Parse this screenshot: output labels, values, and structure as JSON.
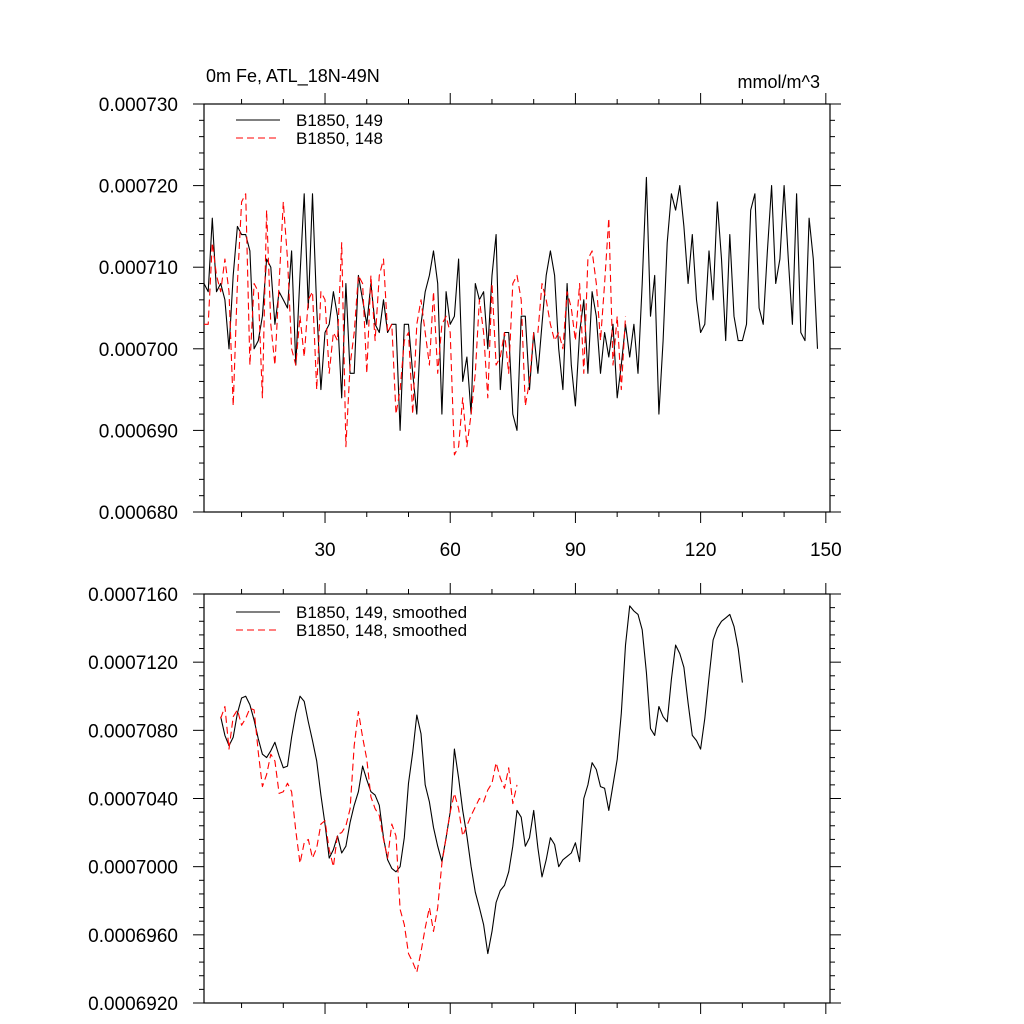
{
  "chart_data": [
    {
      "type": "line",
      "title_left": "0m Fe, ATL_18N-49N",
      "title_right": "mmol/m^3",
      "xlim": [
        1,
        151
      ],
      "ylim": [
        0.00068,
        0.00073
      ],
      "x_ticks": [
        30,
        60,
        90,
        120,
        150
      ],
      "x_tick_labels": [
        "30",
        "60",
        "90",
        "120",
        "150"
      ],
      "y_ticks": [
        0.00068,
        0.00069,
        0.0007,
        0.00071,
        0.00072,
        0.00073
      ],
      "y_tick_labels": [
        "0.000680",
        "0.000690",
        "0.000700",
        "0.000710",
        "0.000720",
        "0.000730"
      ],
      "legend_position": "top-left",
      "series": [
        {
          "name": "B1850, 149",
          "color": "#000000",
          "dash": "solid",
          "x_start": 1,
          "values": [
            0.000708,
            0.000707,
            0.000716,
            0.000707,
            0.000708,
            0.000706,
            0.0007,
            0.000709,
            0.000715,
            0.000714,
            0.000714,
            0.000712,
            0.0007,
            0.000701,
            0.000704,
            0.000711,
            0.00071,
            0.000703,
            0.000707,
            0.000706,
            0.000705,
            0.000712,
            0.000698,
            0.000709,
            0.000719,
            0.000705,
            0.000719,
            0.000705,
            0.000695,
            0.000702,
            0.000703,
            0.000707,
            0.000704,
            0.000694,
            0.000708,
            0.000697,
            0.000697,
            0.000709,
            0.000706,
            0.000703,
            0.000708,
            0.000703,
            0.000702,
            0.000706,
            0.000702,
            0.000703,
            0.000703,
            0.00069,
            0.000703,
            0.000703,
            0.000697,
            0.000692,
            0.000703,
            0.000707,
            0.000709,
            0.000712,
            0.000708,
            0.000692,
            0.000707,
            0.000703,
            0.000704,
            0.000711,
            0.000696,
            0.000699,
            0.000692,
            0.000708,
            0.000706,
            0.000707,
            0.0007,
            0.000709,
            0.000714,
            0.000695,
            0.000702,
            0.000702,
            0.000692,
            0.00069,
            0.000704,
            0.000704,
            0.000695,
            0.000702,
            0.000697,
            0.000703,
            0.000709,
            0.000712,
            0.000709,
            0.0007,
            0.000695,
            0.000708,
            0.000698,
            0.000693,
            0.000702,
            0.000706,
            0.000697,
            0.000707,
            0.000704,
            0.000697,
            0.000702,
            0.000699,
            0.000703,
            0.000694,
            0.000698,
            0.000703,
            0.000699,
            0.000703,
            0.000697,
            0.000708,
            0.000721,
            0.000704,
            0.000709,
            0.000692,
            0.000701,
            0.000713,
            0.000719,
            0.000717,
            0.00072,
            0.000715,
            0.000708,
            0.000714,
            0.000706,
            0.000702,
            0.000703,
            0.000712,
            0.000706,
            0.000718,
            0.000711,
            0.000701,
            0.000714,
            0.000704,
            0.000701,
            0.000701,
            0.000703,
            0.000717,
            0.000719,
            0.000705,
            0.000703,
            0.000712,
            0.00072,
            0.000708,
            0.000711,
            0.00072,
            0.000711,
            0.000703,
            0.000719,
            0.000702,
            0.000701,
            0.000716,
            0.000711,
            0.0007
          ]
        },
        {
          "name": "B1850, 148",
          "color": "#ff0000",
          "dash": "dashed",
          "x_start": 1,
          "values": [
            0.000703,
            0.000703,
            0.000713,
            0.000709,
            0.000707,
            0.000711,
            0.000707,
            0.000693,
            0.000708,
            0.000718,
            0.000719,
            0.000698,
            0.000708,
            0.000707,
            0.000694,
            0.000717,
            0.000703,
            0.000698,
            0.000708,
            0.000718,
            0.000711,
            0.0007,
            0.000698,
            0.000704,
            0.000699,
            0.000706,
            0.000707,
            0.000695,
            0.000707,
            0.000706,
            0.000697,
            0.000702,
            0.000701,
            0.000713,
            0.000688,
            0.000698,
            0.000702,
            0.000709,
            0.000708,
            0.000697,
            0.000709,
            0.000701,
            0.000709,
            0.000711,
            0.000702,
            0.000703,
            0.000692,
            0.000695,
            0.000701,
            0.000702,
            0.000692,
            0.000703,
            0.000706,
            0.000702,
            0.000698,
            0.000707,
            0.000697,
            0.000703,
            0.000704,
            0.000702,
            0.000687,
            0.000688,
            0.000694,
            0.000688,
            0.000692,
            0.000697,
            0.000706,
            0.000702,
            0.000694,
            0.000708,
            0.000698,
            0.000699,
            0.000702,
            0.000697,
            0.000708,
            0.000709,
            0.000706,
            0.000693,
            0.000696,
            0.000702,
            0.000702,
            0.000708,
            0.000706,
            0.000703,
            0.000701,
            0.000702,
            0.0007,
            0.000707,
            0.000705,
            0.000701,
            0.000708,
            0.000697,
            0.000711,
            0.000712,
            0.000708,
            0.000701,
            0.000708,
            0.000716,
            0.000698,
            0.000704,
            0.000695,
            0.000704
          ]
        }
      ]
    },
    {
      "type": "line",
      "xlim": [
        1,
        151
      ],
      "ylim": [
        0.000692,
        0.000716
      ],
      "x_ticks": [
        30,
        60,
        90,
        120,
        150
      ],
      "y_ticks": [
        0.000692,
        0.000696,
        0.0007,
        0.000704,
        0.000708,
        0.000712,
        0.000716
      ],
      "y_tick_labels": [
        "0.0006920",
        "0.0006960",
        "0.0007000",
        "0.0007040",
        "0.0007080",
        "0.0007120",
        "0.0007160"
      ],
      "legend_position": "top-left",
      "series": [
        {
          "name": "B1850, 149, smoothed",
          "color": "#000000",
          "dash": "solid",
          "x_start": 5,
          "values": [
            0.0007088,
            0.0007077,
            0.0007071,
            0.0007076,
            0.000709,
            0.0007099,
            0.00071,
            0.0007095,
            0.0007086,
            0.0007075,
            0.0007066,
            0.0007064,
            0.0007068,
            0.0007073,
            0.0007065,
            0.0007058,
            0.0007059,
            0.0007076,
            0.000709,
            0.00071,
            0.0007097,
            0.0007085,
            0.0007074,
            0.0007062,
            0.0007042,
            0.0007025,
            0.0007005,
            0.000701,
            0.0007018,
            0.0007008,
            0.0007012,
            0.0007026,
            0.0007036,
            0.0007044,
            0.0007059,
            0.0007051,
            0.0007044,
            0.0007042,
            0.0007036,
            0.0007017,
            0.0007004,
            0.0006999,
            0.0006997,
            0.0007,
            0.0007017,
            0.0007049,
            0.0007067,
            0.0007089,
            0.0007078,
            0.0007048,
            0.0007038,
            0.0007023,
            0.0007012,
            0.0007003,
            0.0007017,
            0.0007032,
            0.0007069,
            0.0007052,
            0.0007033,
            0.0007018,
            0.0007,
            0.0006985,
            0.0006976,
            0.0006966,
            0.0006949,
            0.0006962,
            0.0006979,
            0.0006986,
            0.0006989,
            0.0006997,
            0.0007012,
            0.0007033,
            0.0007029,
            0.0007012,
            0.0007017,
            0.0007033,
            0.0007011,
            0.0006994,
            0.0007004,
            0.0007017,
            0.0007013,
            0.0007,
            0.0007004,
            0.0007006,
            0.0007008,
            0.0007014,
            0.0007003,
            0.000704,
            0.0007048,
            0.0007061,
            0.0007057,
            0.0007047,
            0.0007046,
            0.0007033,
            0.0007048,
            0.0007063,
            0.000709,
            0.000713,
            0.0007153,
            0.000715,
            0.0007148,
            0.0007139,
            0.0007114,
            0.0007081,
            0.0007077,
            0.0007094,
            0.0007088,
            0.0007085,
            0.000711,
            0.000713,
            0.0007125,
            0.0007117,
            0.0007096,
            0.0007077,
            0.0007074,
            0.0007069,
            0.0007087,
            0.0007111,
            0.0007133,
            0.000714,
            0.0007144,
            0.0007146,
            0.0007148,
            0.0007141,
            0.0007128,
            0.0007108
          ]
        },
        {
          "name": "B1850, 148, smoothed",
          "color": "#ff0000",
          "dash": "dashed",
          "x_start": 5,
          "values": [
            0.0007087,
            0.0007094,
            0.0007069,
            0.0007088,
            0.0007092,
            0.0007083,
            0.0007087,
            0.0007093,
            0.0007092,
            0.0007067,
            0.0007047,
            0.0007054,
            0.0007066,
            0.0007062,
            0.0007043,
            0.0007044,
            0.0007049,
            0.0007044,
            0.0007021,
            0.0007002,
            0.0007014,
            0.0007016,
            0.0007005,
            0.0007011,
            0.0007025,
            0.0007027,
            0.000701,
            0.0007,
            0.0007019,
            0.000702,
            0.0007024,
            0.0007034,
            0.0007071,
            0.0007091,
            0.0007076,
            0.0007063,
            0.0007041,
            0.0007034,
            0.000703,
            0.0007016,
            0.0007005,
            0.0007025,
            0.0007018,
            0.0006975,
            0.0006966,
            0.0006949,
            0.0006944,
            0.0006938,
            0.000695,
            0.0006964,
            0.0006976,
            0.0006962,
            0.0006976,
            0.0007002,
            0.0007017,
            0.0007032,
            0.0007043,
            0.0007034,
            0.0007018,
            0.0007024,
            0.000703,
            0.0007035,
            0.000704,
            0.0007038,
            0.0007045,
            0.0007049,
            0.0007061,
            0.0007052,
            0.0007046,
            0.0007058,
            0.0007037,
            0.0007048
          ]
        }
      ]
    }
  ]
}
